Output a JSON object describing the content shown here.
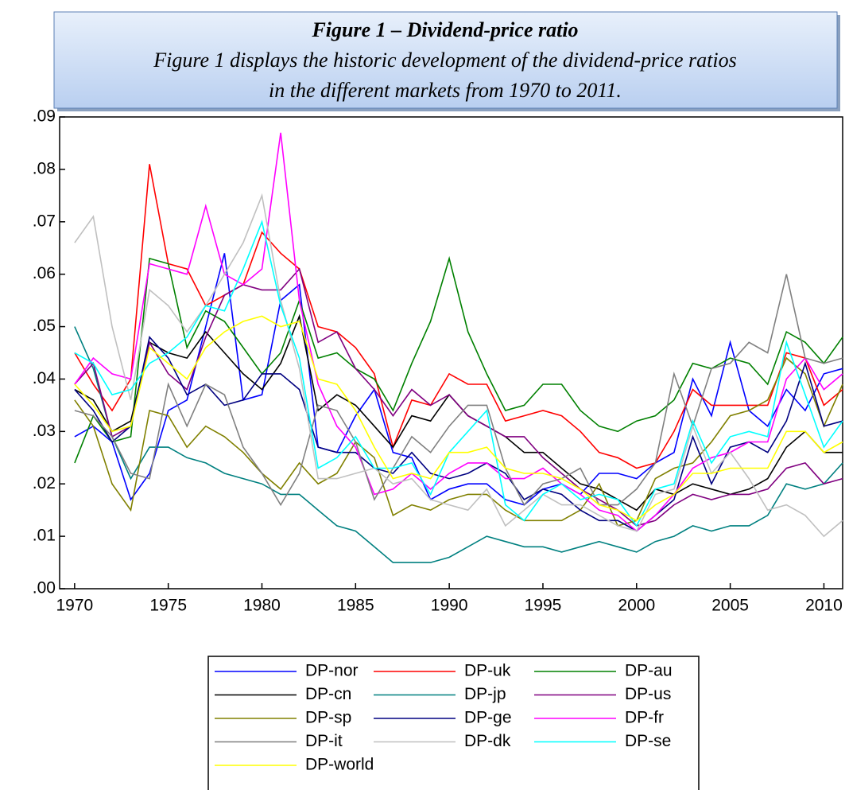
{
  "chart_data": {
    "type": "line",
    "title": "Figure 1 – Dividend-price ratio",
    "subtitle": [
      "Figure 1 displays the historic development of the dividend-price ratios",
      "in the different markets from 1970 to 2011."
    ],
    "x": [
      1970,
      1971,
      1972,
      1973,
      1974,
      1975,
      1976,
      1977,
      1978,
      1979,
      1980,
      1981,
      1982,
      1983,
      1984,
      1985,
      1986,
      1987,
      1988,
      1989,
      1990,
      1991,
      1992,
      1993,
      1994,
      1995,
      1996,
      1997,
      1998,
      1999,
      2000,
      2001,
      2002,
      2003,
      2004,
      2005,
      2006,
      2007,
      2008,
      2009,
      2010,
      2011
    ],
    "xlim": [
      1969.2,
      2011
    ],
    "xticks": [
      1970,
      1975,
      1980,
      1985,
      1990,
      1995,
      2000,
      2005,
      2010
    ],
    "ylim": [
      0,
      0.09
    ],
    "yticks": [
      {
        "value": 0,
        "label": ".00"
      },
      {
        "value": 0.01,
        "label": ".01"
      },
      {
        "value": 0.02,
        "label": ".02"
      },
      {
        "value": 0.03,
        "label": ".03"
      },
      {
        "value": 0.04,
        "label": ".04"
      },
      {
        "value": 0.05,
        "label": ".05"
      },
      {
        "value": 0.06,
        "label": ".06"
      },
      {
        "value": 0.07,
        "label": ".07"
      },
      {
        "value": 0.08,
        "label": ".08"
      },
      {
        "value": 0.09,
        "label": ".09"
      }
    ],
    "series": [
      {
        "name": "DP-nor",
        "color": "#0000ff",
        "values": [
          0.029,
          0.031,
          0.028,
          0.017,
          0.022,
          0.034,
          0.036,
          0.05,
          0.064,
          0.036,
          0.037,
          0.055,
          0.058,
          0.027,
          0.026,
          0.033,
          0.038,
          0.026,
          0.025,
          0.017,
          0.019,
          0.02,
          0.02,
          0.017,
          0.016,
          0.019,
          0.02,
          0.018,
          0.022,
          0.022,
          0.021,
          0.024,
          0.026,
          0.04,
          0.033,
          0.047,
          0.034,
          0.031,
          0.038,
          0.034,
          0.041,
          0.042
        ]
      },
      {
        "name": "DP-uk",
        "color": "#ff0000",
        "values": [
          0.045,
          0.039,
          0.034,
          0.04,
          0.081,
          0.062,
          0.061,
          0.054,
          0.056,
          0.058,
          0.068,
          0.064,
          0.061,
          0.05,
          0.049,
          0.046,
          0.041,
          0.027,
          0.036,
          0.035,
          0.041,
          0.039,
          0.039,
          0.032,
          0.033,
          0.034,
          0.033,
          0.03,
          0.026,
          0.025,
          0.023,
          0.024,
          0.03,
          0.038,
          0.035,
          0.035,
          0.035,
          0.035,
          0.045,
          0.044,
          0.035,
          0.038
        ]
      },
      {
        "name": "DP-au",
        "color": "#008000",
        "values": [
          0.024,
          0.033,
          0.028,
          0.029,
          0.063,
          0.062,
          0.046,
          0.053,
          0.051,
          0.046,
          0.041,
          0.045,
          0.055,
          0.044,
          0.045,
          0.042,
          0.04,
          0.034,
          0.043,
          0.051,
          0.063,
          0.049,
          0.041,
          0.034,
          0.035,
          0.039,
          0.039,
          0.034,
          0.031,
          0.03,
          0.032,
          0.033,
          0.036,
          0.043,
          0.042,
          0.044,
          0.043,
          0.039,
          0.049,
          0.047,
          0.043,
          0.048
        ]
      },
      {
        "name": "DP-cn",
        "color": "#000000",
        "values": [
          0.038,
          0.036,
          0.03,
          0.032,
          0.047,
          0.045,
          0.044,
          0.049,
          0.045,
          0.041,
          0.038,
          0.043,
          0.052,
          0.034,
          0.037,
          0.035,
          0.031,
          0.027,
          0.033,
          0.032,
          0.037,
          0.033,
          0.031,
          0.029,
          0.026,
          0.026,
          0.023,
          0.02,
          0.019,
          0.017,
          0.015,
          0.019,
          0.018,
          0.02,
          0.019,
          0.018,
          0.019,
          0.021,
          0.027,
          0.03,
          0.026,
          0.026
        ]
      },
      {
        "name": "DP-jp",
        "color": "#008080",
        "values": [
          0.05,
          0.042,
          0.029,
          0.021,
          0.027,
          0.027,
          0.025,
          0.024,
          0.022,
          0.021,
          0.02,
          0.018,
          0.018,
          0.015,
          0.012,
          0.011,
          0.008,
          0.005,
          0.005,
          0.005,
          0.006,
          0.008,
          0.01,
          0.009,
          0.008,
          0.008,
          0.007,
          0.008,
          0.009,
          0.008,
          0.007,
          0.009,
          0.01,
          0.012,
          0.011,
          0.012,
          0.012,
          0.014,
          0.02,
          0.019,
          0.02,
          0.024
        ]
      },
      {
        "name": "DP-us",
        "color": "#800080",
        "values": [
          0.039,
          0.043,
          0.029,
          0.031,
          0.047,
          0.041,
          0.038,
          0.048,
          0.056,
          0.058,
          0.057,
          0.057,
          0.061,
          0.047,
          0.049,
          0.042,
          0.038,
          0.033,
          0.038,
          0.035,
          0.037,
          0.033,
          0.031,
          0.029,
          0.029,
          0.025,
          0.022,
          0.019,
          0.017,
          0.015,
          0.012,
          0.013,
          0.016,
          0.018,
          0.017,
          0.018,
          0.018,
          0.019,
          0.023,
          0.024,
          0.02,
          0.021
        ]
      },
      {
        "name": "DP-sp",
        "color": "#808000",
        "values": [
          0.036,
          0.031,
          0.02,
          0.015,
          0.034,
          0.033,
          0.027,
          0.031,
          0.029,
          0.026,
          0.022,
          0.019,
          0.024,
          0.02,
          0.022,
          0.028,
          0.025,
          0.014,
          0.016,
          0.015,
          0.017,
          0.018,
          0.018,
          0.015,
          0.013,
          0.013,
          0.013,
          0.015,
          0.02,
          0.012,
          0.013,
          0.021,
          0.023,
          0.024,
          0.028,
          0.033,
          0.034,
          0.036,
          0.044,
          0.041,
          0.031,
          0.039
        ]
      },
      {
        "name": "DP-ge",
        "color": "#000080",
        "values": [
          0.038,
          0.034,
          0.028,
          0.031,
          0.048,
          0.044,
          0.037,
          0.039,
          0.035,
          0.036,
          0.041,
          0.041,
          0.038,
          0.027,
          0.026,
          0.026,
          0.023,
          0.022,
          0.026,
          0.022,
          0.021,
          0.022,
          0.024,
          0.022,
          0.017,
          0.019,
          0.018,
          0.015,
          0.013,
          0.013,
          0.011,
          0.014,
          0.017,
          0.029,
          0.02,
          0.027,
          0.028,
          0.026,
          0.032,
          0.043,
          0.031,
          0.032
        ]
      },
      {
        "name": "DP-fr",
        "color": "#ff00ff",
        "values": [
          0.039,
          0.044,
          0.041,
          0.04,
          0.062,
          0.061,
          0.06,
          0.073,
          0.06,
          0.058,
          0.061,
          0.087,
          0.055,
          0.039,
          0.031,
          0.027,
          0.018,
          0.019,
          0.022,
          0.019,
          0.022,
          0.024,
          0.024,
          0.021,
          0.021,
          0.023,
          0.02,
          0.018,
          0.015,
          0.014,
          0.011,
          0.014,
          0.018,
          0.023,
          0.025,
          0.026,
          0.028,
          0.028,
          0.04,
          0.044,
          0.038,
          0.041
        ]
      },
      {
        "name": "DP-it",
        "color": "#808080",
        "values": [
          0.034,
          0.033,
          0.029,
          0.022,
          0.021,
          0.039,
          0.031,
          0.039,
          0.037,
          0.027,
          0.022,
          0.016,
          0.022,
          0.035,
          0.034,
          0.028,
          0.017,
          0.023,
          0.029,
          0.026,
          0.031,
          0.035,
          0.035,
          0.023,
          0.016,
          0.02,
          0.021,
          0.023,
          0.016,
          0.016,
          0.019,
          0.024,
          0.041,
          0.031,
          0.042,
          0.043,
          0.047,
          0.045,
          0.06,
          0.044,
          0.043,
          0.044
        ]
      },
      {
        "name": "DP-dk",
        "color": "#c0c0c0",
        "values": [
          0.066,
          0.071,
          0.05,
          0.036,
          0.057,
          0.054,
          0.049,
          0.054,
          0.06,
          0.066,
          0.075,
          0.055,
          0.042,
          0.021,
          0.021,
          0.022,
          0.023,
          0.02,
          0.021,
          0.017,
          0.016,
          0.015,
          0.019,
          0.012,
          0.015,
          0.018,
          0.016,
          0.016,
          0.014,
          0.012,
          0.011,
          0.018,
          0.019,
          0.031,
          0.022,
          0.026,
          0.021,
          0.015,
          0.016,
          0.014,
          0.01,
          0.013
        ]
      },
      {
        "name": "DP-se",
        "color": "#00ffff",
        "values": [
          0.045,
          0.043,
          0.037,
          0.038,
          0.043,
          0.045,
          0.048,
          0.054,
          0.053,
          0.061,
          0.07,
          0.054,
          0.044,
          0.023,
          0.025,
          0.029,
          0.023,
          0.023,
          0.024,
          0.018,
          0.026,
          0.03,
          0.034,
          0.016,
          0.013,
          0.018,
          0.02,
          0.017,
          0.018,
          0.017,
          0.012,
          0.019,
          0.02,
          0.032,
          0.024,
          0.029,
          0.03,
          0.029,
          0.047,
          0.037,
          0.027,
          0.032
        ]
      },
      {
        "name": "DP-world",
        "color": "#ffff00",
        "values": [
          0.039,
          0.035,
          0.03,
          0.031,
          0.046,
          0.043,
          0.04,
          0.046,
          0.049,
          0.051,
          0.052,
          0.05,
          0.051,
          0.04,
          0.039,
          0.034,
          0.027,
          0.021,
          0.022,
          0.021,
          0.026,
          0.026,
          0.027,
          0.023,
          0.022,
          0.022,
          0.021,
          0.019,
          0.016,
          0.015,
          0.013,
          0.016,
          0.018,
          0.022,
          0.022,
          0.023,
          0.023,
          0.023,
          0.03,
          0.03,
          0.026,
          0.028
        ]
      }
    ]
  }
}
